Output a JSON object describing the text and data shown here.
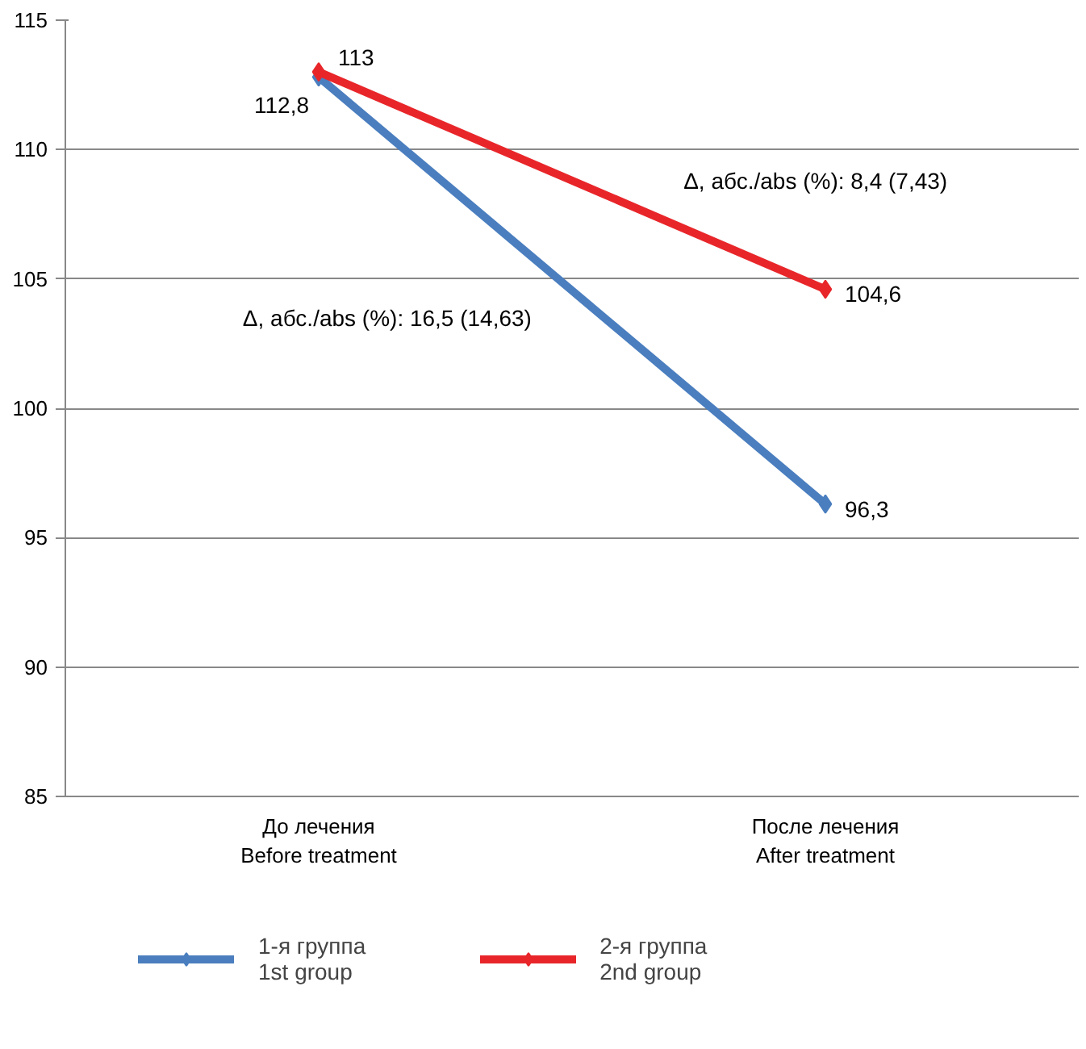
{
  "chart_data": {
    "type": "line",
    "categories": [
      "До лечения\nBefore treatment",
      "После лечения\nAfter treatment"
    ],
    "series": [
      {
        "name": "1-я группа\n1st group",
        "color": "#4a7ebf",
        "values": [
          112.8,
          96.3
        ],
        "value_labels": [
          "112,8",
          "96,3"
        ]
      },
      {
        "name": "2-я группа\n2nd group",
        "color": "#e8262a",
        "values": [
          113,
          104.6
        ],
        "value_labels": [
          "113",
          "104,6"
        ]
      }
    ],
    "annotations": [
      "Δ, абс./abs (%): 16,5 (14,63)",
      "Δ, абс./abs (%): 8,4 (7,43)"
    ],
    "ylim": [
      85,
      115
    ],
    "yticks": [
      85,
      90,
      95,
      100,
      105,
      110,
      115
    ],
    "grid": "y",
    "legend": "bottom",
    "marker": "diamond",
    "line_style": "solid"
  }
}
